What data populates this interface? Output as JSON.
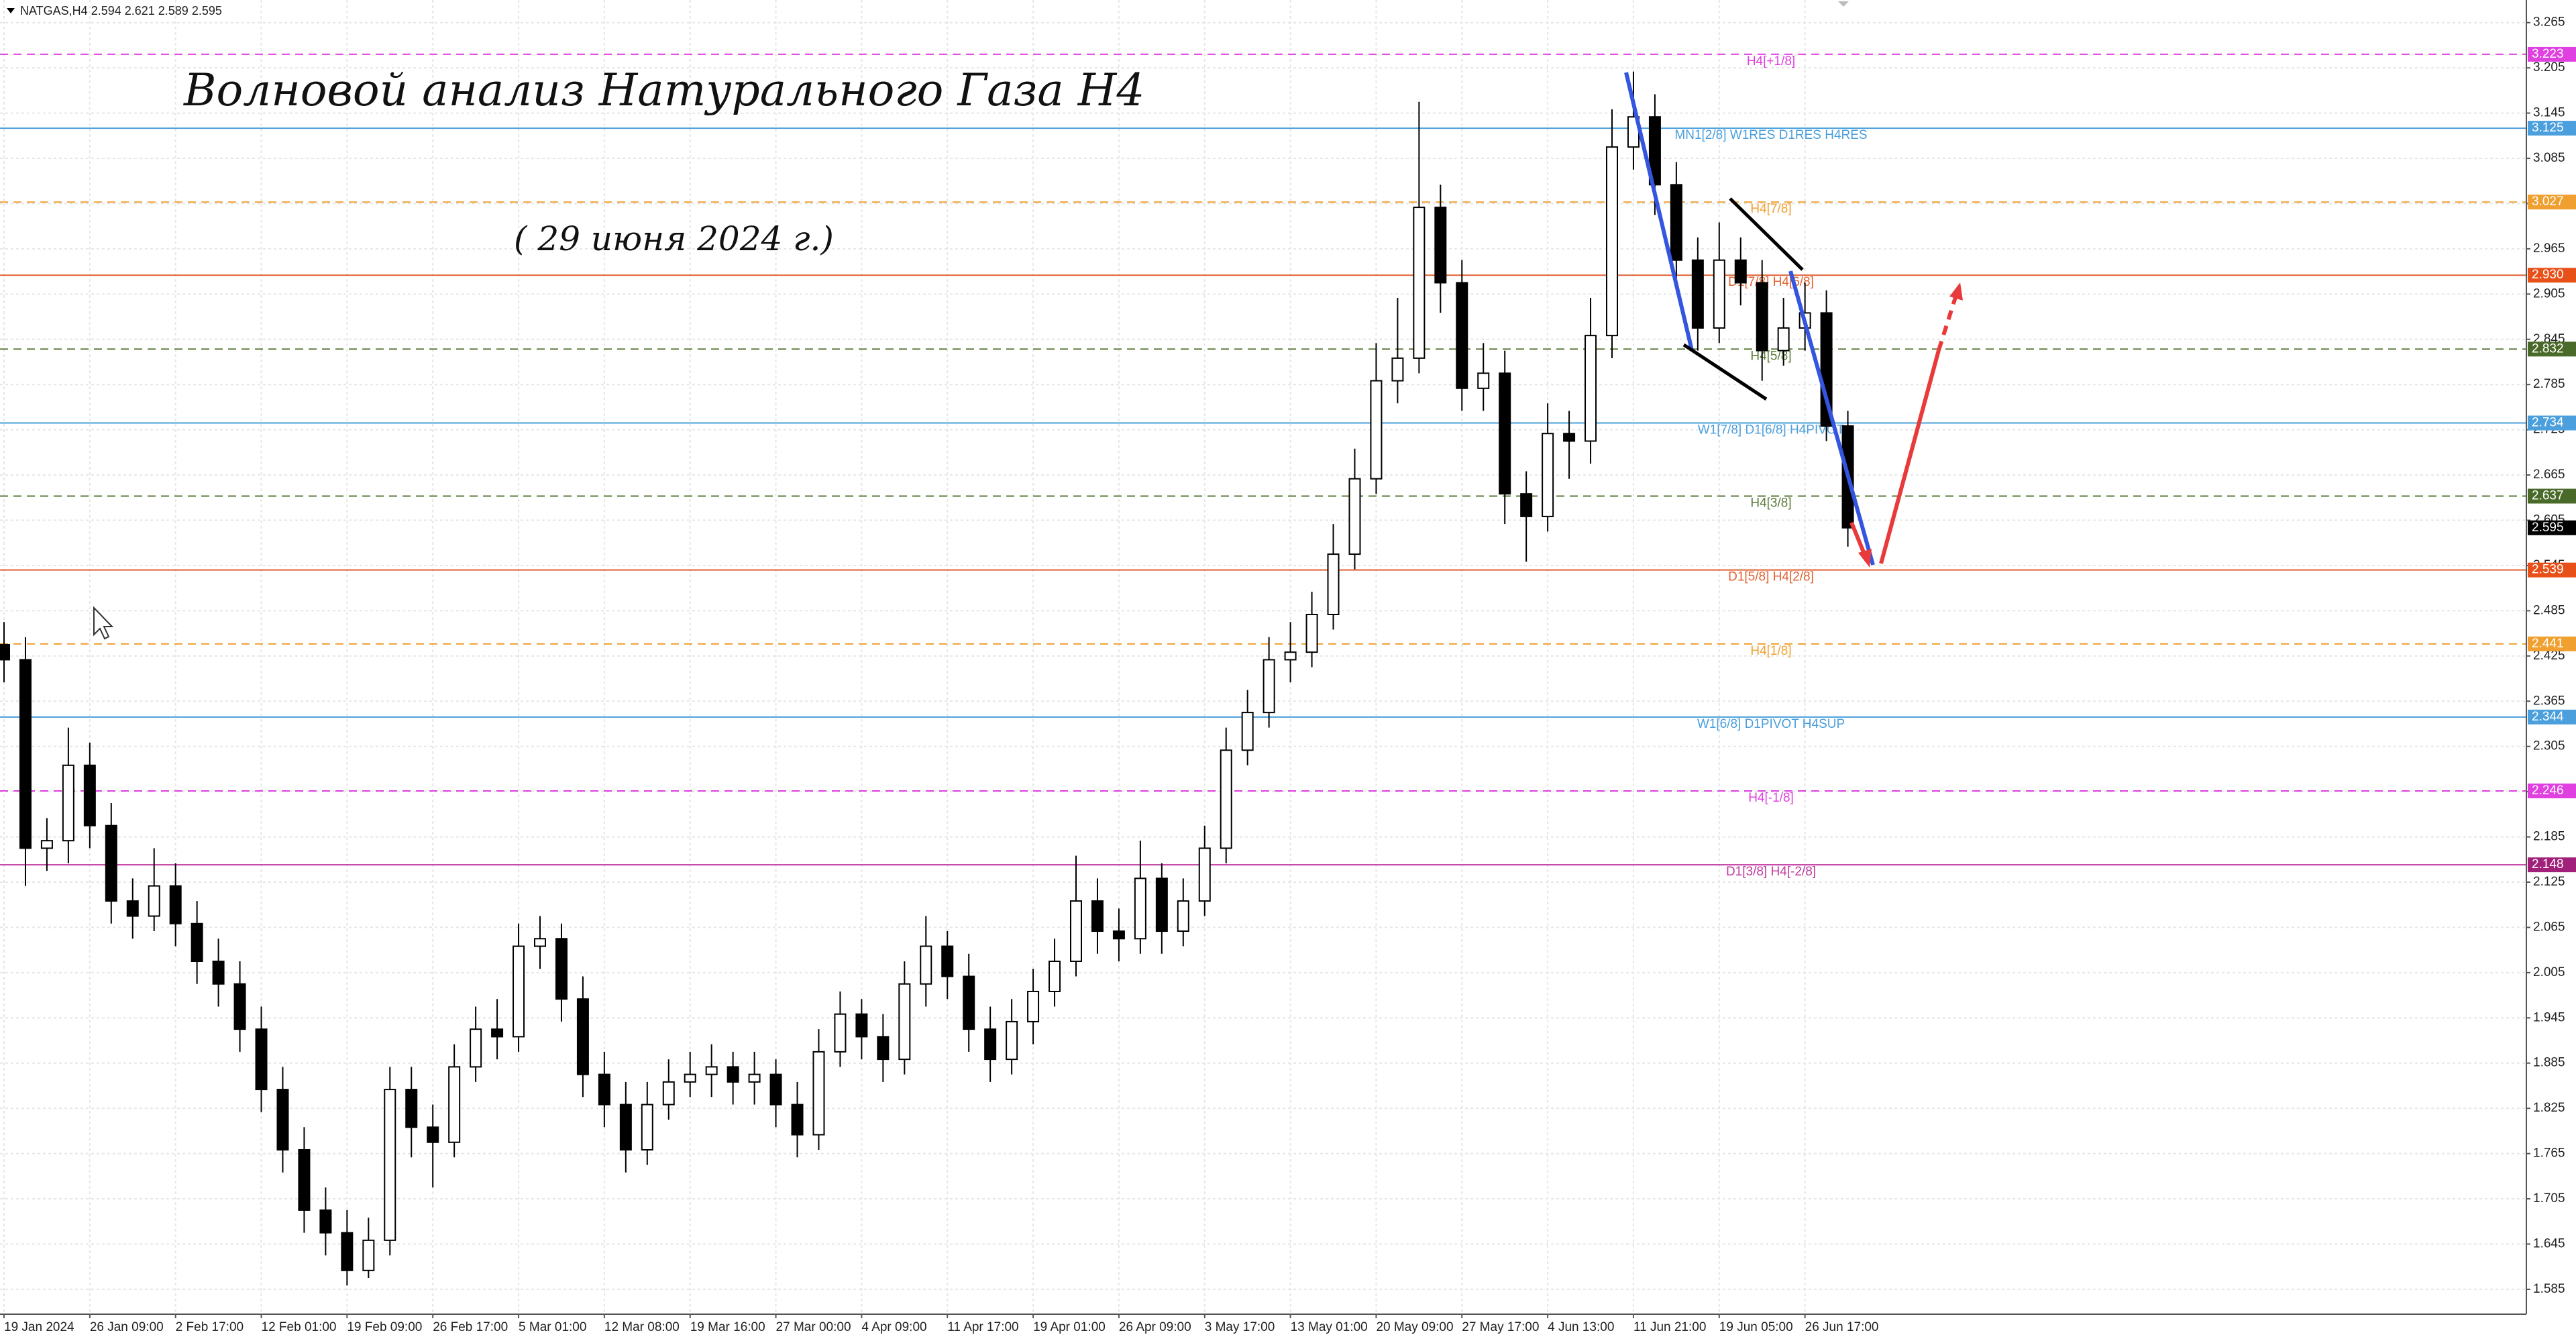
{
  "chart_data": {
    "type": "candlestick",
    "header": "NATGAS,H4  2.594 2.621 2.589 2.595",
    "title": "Волновой анализ Натурального Газа H4",
    "subtitle": "( 29 июня 2024 г.)",
    "categories": [
      "19 Jan 2024",
      null,
      null,
      null,
      "26 Jan 09:00",
      null,
      null,
      null,
      "2 Feb 17:00",
      null,
      null,
      null,
      "12 Feb 01:00",
      null,
      null,
      null,
      "19 Feb 09:00",
      null,
      null,
      null,
      "26 Feb 17:00",
      null,
      null,
      null,
      "5 Mar 01:00",
      null,
      null,
      null,
      "12 Mar 08:00",
      null,
      null,
      null,
      "19 Mar 16:00",
      null,
      null,
      null,
      "27 Mar 00:00",
      null,
      null,
      null,
      "4 Apr 09:00",
      null,
      null,
      null,
      "11 Apr 17:00",
      null,
      null,
      null,
      "19 Apr 01:00",
      null,
      null,
      null,
      "26 Apr 09:00",
      null,
      null,
      null,
      "3 May 17:00",
      null,
      null,
      null,
      "13 May 01:00",
      null,
      null,
      null,
      "20 May 09:00",
      null,
      null,
      null,
      "27 May 17:00",
      null,
      null,
      null,
      "4 Jun 13:00",
      null,
      null,
      null,
      "11 Jun 21:00",
      null,
      null,
      null,
      "19 Jun 05:00",
      null,
      null,
      null,
      "26 Jun 17:00",
      null,
      null
    ],
    "open": [
      2.44,
      2.42,
      2.17,
      2.18,
      2.28,
      2.2,
      2.1,
      2.08,
      2.12,
      2.07,
      2.02,
      1.99,
      1.93,
      1.85,
      1.77,
      1.69,
      1.66,
      1.61,
      1.65,
      1.85,
      1.8,
      1.78,
      1.88,
      1.93,
      1.92,
      2.04,
      2.05,
      1.97,
      1.87,
      1.83,
      1.77,
      1.83,
      1.86,
      1.87,
      1.88,
      1.86,
      1.87,
      1.83,
      1.79,
      1.9,
      1.95,
      1.92,
      1.89,
      1.99,
      2.04,
      2.0,
      1.93,
      1.89,
      1.94,
      1.98,
      2.02,
      2.1,
      2.06,
      2.05,
      2.13,
      2.06,
      2.1,
      2.17,
      2.3,
      2.35,
      2.42,
      2.43,
      2.48,
      2.56,
      2.66,
      2.79,
      2.82,
      3.02,
      2.92,
      2.78,
      2.8,
      2.64,
      2.61,
      2.72,
      2.71,
      2.85,
      3.1,
      3.14,
      3.05,
      2.95,
      2.86,
      2.95,
      2.92,
      2.83,
      2.86,
      2.88,
      2.73
    ],
    "high": [
      2.47,
      2.45,
      2.21,
      2.33,
      2.31,
      2.23,
      2.13,
      2.17,
      2.15,
      2.1,
      2.05,
      2.02,
      1.96,
      1.88,
      1.8,
      1.72,
      1.69,
      1.68,
      1.88,
      1.88,
      1.83,
      1.91,
      1.96,
      1.97,
      2.07,
      2.08,
      2.07,
      2.0,
      1.9,
      1.86,
      1.86,
      1.89,
      1.9,
      1.91,
      1.9,
      1.9,
      1.89,
      1.86,
      1.93,
      1.98,
      1.97,
      1.95,
      2.02,
      2.08,
      2.06,
      2.03,
      1.96,
      1.97,
      2.01,
      2.05,
      2.16,
      2.13,
      2.09,
      2.18,
      2.15,
      2.13,
      2.2,
      2.33,
      2.38,
      2.45,
      2.47,
      2.51,
      2.6,
      2.7,
      2.84,
      2.9,
      3.16,
      3.05,
      2.95,
      2.84,
      2.83,
      2.67,
      2.76,
      2.75,
      2.9,
      3.15,
      3.2,
      3.17,
      3.08,
      2.98,
      3.0,
      2.98,
      2.95,
      2.9,
      2.92,
      2.91,
      2.75
    ],
    "low": [
      2.39,
      2.12,
      2.14,
      2.15,
      2.17,
      2.07,
      2.05,
      2.06,
      2.04,
      1.99,
      1.96,
      1.9,
      1.82,
      1.74,
      1.66,
      1.63,
      1.59,
      1.6,
      1.63,
      1.76,
      1.72,
      1.76,
      1.86,
      1.89,
      1.9,
      2.01,
      1.94,
      1.84,
      1.8,
      1.74,
      1.75,
      1.81,
      1.84,
      1.84,
      1.83,
      1.83,
      1.8,
      1.76,
      1.77,
      1.88,
      1.89,
      1.86,
      1.87,
      1.96,
      1.97,
      1.9,
      1.86,
      1.87,
      1.91,
      1.96,
      2.0,
      2.03,
      2.02,
      2.03,
      2.03,
      2.04,
      2.08,
      2.15,
      2.28,
      2.33,
      2.39,
      2.41,
      2.46,
      2.54,
      2.64,
      2.76,
      2.8,
      2.88,
      2.75,
      2.75,
      2.6,
      2.55,
      2.59,
      2.66,
      2.68,
      2.82,
      3.07,
      3.01,
      2.92,
      2.83,
      2.84,
      2.89,
      2.79,
      2.81,
      2.83,
      2.71,
      2.57
    ],
    "close": [
      2.42,
      2.17,
      2.18,
      2.28,
      2.2,
      2.1,
      2.08,
      2.12,
      2.07,
      2.02,
      1.99,
      1.93,
      1.85,
      1.77,
      1.69,
      1.66,
      1.61,
      1.65,
      1.85,
      1.8,
      1.78,
      1.88,
      1.93,
      1.92,
      2.04,
      2.05,
      1.97,
      1.87,
      1.83,
      1.77,
      1.83,
      1.86,
      1.87,
      1.88,
      1.86,
      1.87,
      1.83,
      1.79,
      1.9,
      1.95,
      1.92,
      1.89,
      1.99,
      2.04,
      2.0,
      1.93,
      1.89,
      1.94,
      1.98,
      2.02,
      2.1,
      2.06,
      2.05,
      2.13,
      2.06,
      2.1,
      2.17,
      2.3,
      2.35,
      2.42,
      2.43,
      2.48,
      2.56,
      2.66,
      2.79,
      2.82,
      3.02,
      2.92,
      2.78,
      2.8,
      2.64,
      2.61,
      2.72,
      2.71,
      2.85,
      3.1,
      3.14,
      3.05,
      2.95,
      2.86,
      2.95,
      2.92,
      2.83,
      2.86,
      2.88,
      2.73,
      2.595
    ],
    "up_color": "#ffffff",
    "down_color": "#000000",
    "ylim": [
      1.552,
      3.295
    ],
    "yticks": [
      3.265,
      3.205,
      3.145,
      3.085,
      3.025,
      2.965,
      2.905,
      2.845,
      2.785,
      2.725,
      2.665,
      2.605,
      2.545,
      2.485,
      2.425,
      2.365,
      2.305,
      2.245,
      2.185,
      2.125,
      2.065,
      2.005,
      1.945,
      1.885,
      1.825,
      1.765,
      1.705,
      1.645,
      1.585
    ],
    "grid": true,
    "levels": [
      {
        "price": 3.223,
        "label": "H4[+1/8]",
        "color": "#e040e0",
        "box_color": "#e040e0",
        "dashed": true
      },
      {
        "price": 3.125,
        "label": "MN1[2/8] W1RES D1RES H4RES",
        "color": "#4a9fdc",
        "box_color": "#4a9fdc",
        "dashed": false
      },
      {
        "price": 3.027,
        "label": "H4[7/8]",
        "color": "#f0a030",
        "box_color": "#f0a030",
        "dashed": true
      },
      {
        "price": {
          "value": 2.93,
          "label": "2.930"
        },
        "label": "D1[7/8] H4[6/8]",
        "color": "#e06030",
        "box_color": "#e8501a",
        "dashed": false
      },
      {
        "price": 2.832,
        "label": "H4[5/8]",
        "color": "#5a7a3a",
        "box_color": "#4a6a2a",
        "dashed": true
      },
      {
        "price": 2.734,
        "label": "W1[7/8] D1[6/8] H4PIVOT",
        "color": "#4a9fdc",
        "box_color": "#4a9fdc",
        "dashed": false
      },
      {
        "price": 2.637,
        "label": "H4[3/8]",
        "color": "#5a7a3a",
        "box_color": "#4a6a2a",
        "dashed": true
      },
      {
        "price": 2.539,
        "label": "D1[5/8] H4[2/8]",
        "color": "#e06030",
        "box_color": "#e8501a",
        "dashed": false
      },
      {
        "price": 2.441,
        "label": "H4[1/8]",
        "color": "#f0a030",
        "box_color": "#f0a030",
        "dashed": true
      },
      {
        "price": 2.344,
        "label": "W1[6/8] D1PIVOT H4SUP",
        "color": "#4a9fdc",
        "box_color": "#4a9fdc",
        "dashed": false
      },
      {
        "price": 2.246,
        "label": "H4[-1/8]",
        "color": "#e040e0",
        "box_color": "#e040e0",
        "dashed": true
      },
      {
        "price": 2.148,
        "label": "D1[3/8] H4[-2/8]",
        "color": "#c03aa0",
        "box_color": "#a0207a",
        "dashed": false
      }
    ],
    "last_price": 2.595,
    "last_price_color": "#000000"
  }
}
